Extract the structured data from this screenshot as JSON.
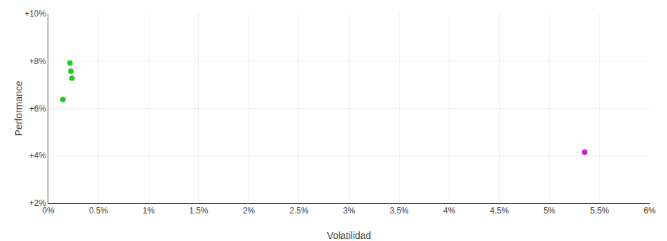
{
  "chart_data": {
    "type": "scatter",
    "xlabel": "Volatilidad",
    "ylabel": "Performance",
    "xlim": [
      0,
      0.06
    ],
    "ylim": [
      0.02,
      0.1
    ],
    "xticks": [
      {
        "value": 0.0,
        "label": "0%"
      },
      {
        "value": 0.005,
        "label": "0.5%"
      },
      {
        "value": 0.01,
        "label": "1%"
      },
      {
        "value": 0.015,
        "label": "1.5%"
      },
      {
        "value": 0.02,
        "label": "2%"
      },
      {
        "value": 0.025,
        "label": "2.5%"
      },
      {
        "value": 0.03,
        "label": "3%"
      },
      {
        "value": 0.035,
        "label": "3.5%"
      },
      {
        "value": 0.04,
        "label": "4%"
      },
      {
        "value": 0.045,
        "label": "4.5%"
      },
      {
        "value": 0.05,
        "label": "5%"
      },
      {
        "value": 0.055,
        "label": "5.5%"
      },
      {
        "value": 0.06,
        "label": "6%"
      }
    ],
    "yticks": [
      {
        "value": 0.02,
        "label": "+2%"
      },
      {
        "value": 0.04,
        "label": "+4%"
      },
      {
        "value": 0.06,
        "label": "+6%"
      },
      {
        "value": 0.08,
        "label": "+8%"
      },
      {
        "value": 0.1,
        "label": "+10%"
      }
    ],
    "grid": true,
    "series": [
      {
        "color": "#22cc22",
        "x": [
          0.00215,
          0.00225,
          0.00235,
          0.00145
        ],
        "values": [
          0.0792,
          0.0758,
          0.0728,
          0.0638
        ]
      },
      {
        "color": "#cc22cc",
        "x": [
          0.0535
        ],
        "values": [
          0.0415
        ]
      }
    ]
  }
}
